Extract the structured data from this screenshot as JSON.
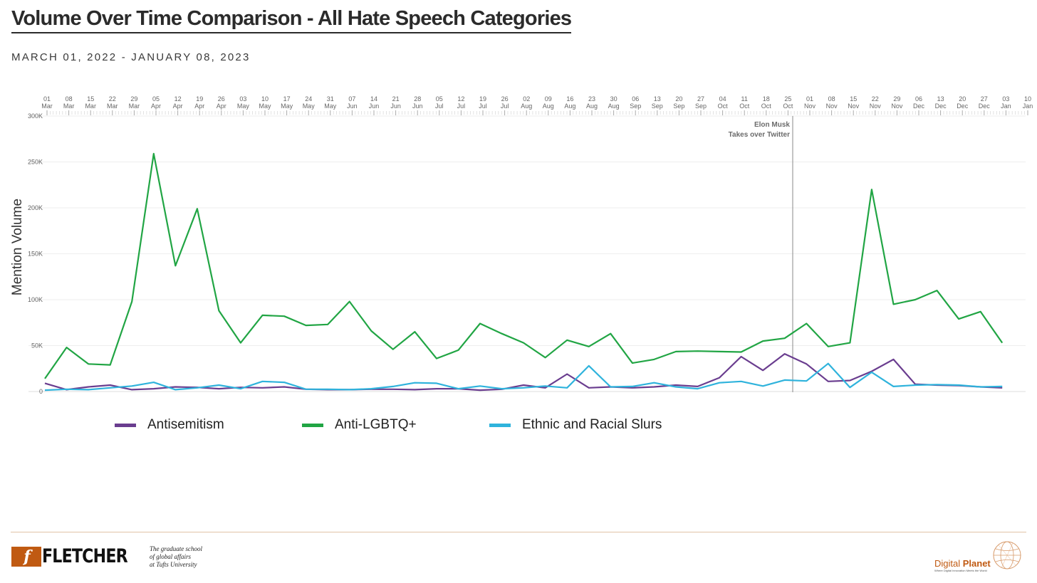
{
  "title": "Volume Over Time Comparison - All Hate Speech Categories",
  "subtitle": "MARCH 01, 2022 - JANUARY 08, 2023",
  "chart_data": {
    "type": "line",
    "title": "Volume Over Time Comparison - All Hate Speech Categories",
    "xlabel": "",
    "ylabel": "Mention Volume",
    "ylim": [
      0,
      300000
    ],
    "y_ticks": [
      {
        "value": 0,
        "label": "0"
      },
      {
        "value": 50000,
        "label": "50K"
      },
      {
        "value": 100000,
        "label": "100K"
      },
      {
        "value": 150000,
        "label": "150K"
      },
      {
        "value": 200000,
        "label": "200K"
      },
      {
        "value": 250000,
        "label": "250K"
      },
      {
        "value": 300000,
        "label": "300K"
      }
    ],
    "x_ticks": [
      {
        "day": "01",
        "month": "Mar"
      },
      {
        "day": "08",
        "month": "Mar"
      },
      {
        "day": "15",
        "month": "Mar"
      },
      {
        "day": "22",
        "month": "Mar"
      },
      {
        "day": "29",
        "month": "Mar"
      },
      {
        "day": "05",
        "month": "Apr"
      },
      {
        "day": "12",
        "month": "Apr"
      },
      {
        "day": "19",
        "month": "Apr"
      },
      {
        "day": "26",
        "month": "Apr"
      },
      {
        "day": "03",
        "month": "May"
      },
      {
        "day": "10",
        "month": "May"
      },
      {
        "day": "17",
        "month": "May"
      },
      {
        "day": "24",
        "month": "May"
      },
      {
        "day": "31",
        "month": "May"
      },
      {
        "day": "07",
        "month": "Jun"
      },
      {
        "day": "14",
        "month": "Jun"
      },
      {
        "day": "21",
        "month": "Jun"
      },
      {
        "day": "28",
        "month": "Jun"
      },
      {
        "day": "05",
        "month": "Jul"
      },
      {
        "day": "12",
        "month": "Jul"
      },
      {
        "day": "19",
        "month": "Jul"
      },
      {
        "day": "26",
        "month": "Jul"
      },
      {
        "day": "02",
        "month": "Aug"
      },
      {
        "day": "09",
        "month": "Aug"
      },
      {
        "day": "16",
        "month": "Aug"
      },
      {
        "day": "23",
        "month": "Aug"
      },
      {
        "day": "30",
        "month": "Aug"
      },
      {
        "day": "06",
        "month": "Sep"
      },
      {
        "day": "13",
        "month": "Sep"
      },
      {
        "day": "20",
        "month": "Sep"
      },
      {
        "day": "27",
        "month": "Sep"
      },
      {
        "day": "04",
        "month": "Oct"
      },
      {
        "day": "11",
        "month": "Oct"
      },
      {
        "day": "18",
        "month": "Oct"
      },
      {
        "day": "25",
        "month": "Oct"
      },
      {
        "day": "01",
        "month": "Nov"
      },
      {
        "day": "08",
        "month": "Nov"
      },
      {
        "day": "15",
        "month": "Nov"
      },
      {
        "day": "22",
        "month": "Nov"
      },
      {
        "day": "29",
        "month": "Nov"
      },
      {
        "day": "06",
        "month": "Dec"
      },
      {
        "day": "13",
        "month": "Dec"
      },
      {
        "day": "20",
        "month": "Dec"
      },
      {
        "day": "27",
        "month": "Dec"
      },
      {
        "day": "03",
        "month": "Jan"
      },
      {
        "day": "10",
        "month": "Jan"
      }
    ],
    "x": [
      "Feb 28",
      "Mar 07",
      "Mar 14",
      "Mar 21",
      "Mar 28",
      "Apr 04",
      "Apr 11",
      "Apr 18",
      "Apr 25",
      "May 02",
      "May 09",
      "May 16",
      "May 23",
      "May 30",
      "Jun 06",
      "Jun 13",
      "Jun 20",
      "Jun 27",
      "Jul 04",
      "Jul 11",
      "Jul 18",
      "Jul 25",
      "Aug 01",
      "Aug 08",
      "Aug 15",
      "Aug 22",
      "Aug 29",
      "Sep 05",
      "Sep 12",
      "Sep 19",
      "Sep 26",
      "Oct 03",
      "Oct 10",
      "Oct 17",
      "Oct 24",
      "Oct 31",
      "Nov 07",
      "Nov 14",
      "Nov 21",
      "Nov 28",
      "Dec 05",
      "Dec 12",
      "Dec 19",
      "Dec 26",
      "Jan 02"
    ],
    "series": [
      {
        "name": "Antisemitism",
        "color": "#6a3d8f",
        "values": [
          9000,
          2000,
          5000,
          7000,
          2000,
          3000,
          5000,
          4500,
          3000,
          4500,
          4000,
          5000,
          2500,
          2000,
          2000,
          2500,
          2500,
          2000,
          3000,
          3000,
          1500,
          2500,
          7000,
          4000,
          19000,
          4000,
          5000,
          4000,
          5000,
          7000,
          5500,
          15000,
          38000,
          23000,
          41000,
          30000,
          11000,
          12000,
          22000,
          35000,
          8000,
          7000,
          6500,
          5000,
          4000
        ]
      },
      {
        "name": "Anti-LGBTQ+",
        "color": "#21a544",
        "values": [
          14000,
          48000,
          30000,
          29000,
          98000,
          259000,
          137000,
          199000,
          88000,
          53000,
          83000,
          82000,
          72000,
          73000,
          98000,
          66000,
          46000,
          65000,
          36000,
          45000,
          74000,
          63000,
          53000,
          37000,
          56000,
          49000,
          63000,
          31000,
          35000,
          43500,
          44000,
          43500,
          43000,
          55000,
          58000,
          74000,
          49000,
          53000,
          220000,
          95000,
          100000,
          110000,
          79000,
          87000,
          53000
        ]
      },
      {
        "name": "Ethnic and Racial Slurs",
        "color": "#2fb3dc",
        "values": [
          1500,
          2500,
          2000,
          4000,
          6000,
          10000,
          2000,
          4000,
          7000,
          3000,
          11000,
          10000,
          2500,
          2500,
          2000,
          3000,
          5500,
          9500,
          9000,
          3000,
          6000,
          3000,
          4000,
          6000,
          4000,
          28000,
          5000,
          5500,
          9500,
          5000,
          3000,
          9500,
          11000,
          6000,
          12500,
          11500,
          30500,
          4500,
          21000,
          5500,
          7000,
          7500,
          7000,
          5000,
          5500
        ]
      }
    ],
    "annotation": {
      "line1": "Elon Musk",
      "line2": "Takes over Twitter",
      "date": "Oct 28"
    }
  },
  "legend": {
    "items": [
      {
        "label": "Antisemitism",
        "color": "#6a3d8f"
      },
      {
        "label": "Anti-LGBTQ+",
        "color": "#21a544"
      },
      {
        "label": "Ethnic and Racial Slurs",
        "color": "#2fb3dc"
      }
    ]
  },
  "footer": {
    "fletcher_mark": "f",
    "fletcher_name": "FLETCHER",
    "tagline1": "The graduate school",
    "tagline2": "of global affairs",
    "tagline3": "at Tufts University",
    "dp_name_1": "Digital ",
    "dp_name_2": "Planet",
    "dp_tagline": "Where Digital Innovation Meets the World"
  }
}
